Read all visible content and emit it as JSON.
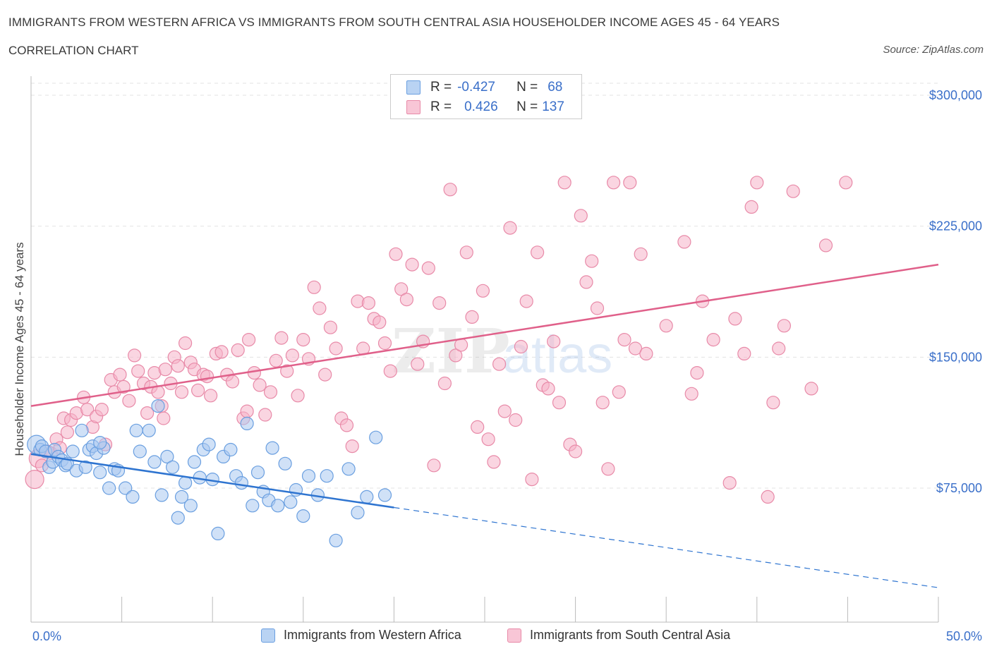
{
  "header": {
    "title": "IMMIGRANTS FROM WESTERN AFRICA VS IMMIGRANTS FROM SOUTH CENTRAL ASIA HOUSEHOLDER INCOME AGES 45 - 64 YEARS",
    "subtitle": "CORRELATION CHART",
    "source": "Source: ZipAtlas.com"
  },
  "legend": {
    "r_label": "R =",
    "n_label": "N =",
    "series1": {
      "r": "-0.427",
      "n": "68"
    },
    "series2": {
      "r": "0.426",
      "n": "137"
    }
  },
  "colors": {
    "blue_fill": "#a9c8f0",
    "blue_stroke": "#6a9fe0",
    "blue_line": "#2e74d0",
    "pink_fill": "#f5b3c8",
    "pink_stroke": "#e88aa8",
    "pink_line": "#e0608a",
    "axis_text": "#3a6fc9"
  },
  "chart_data": {
    "type": "scatter",
    "title": "IMMIGRANTS FROM WESTERN AFRICA VS IMMIGRANTS FROM SOUTH CENTRAL ASIA HOUSEHOLDER INCOME AGES 45 - 64 YEARS",
    "xlabel": "",
    "ylabel": "Householder Income Ages 45 - 64 years",
    "xlim": [
      0,
      50
    ],
    "ylim": [
      0,
      300000
    ],
    "x_tick_labels": [
      "0.0%",
      "50.0%"
    ],
    "y_ticks": [
      75000,
      150000,
      225000,
      300000
    ],
    "y_tick_labels": [
      "$75,000",
      "$150,000",
      "$225,000",
      "$300,000"
    ],
    "grid": true,
    "watermark": "ZIPatlas",
    "series": [
      {
        "name": "Immigrants from Western Africa",
        "color": "blue",
        "r": -0.427,
        "n": 68,
        "trend": {
          "x0": 0,
          "y0": 94500,
          "x_solid_end": 20,
          "x1": 50,
          "y1": 18000
        },
        "points": [
          [
            0.3,
            100000
          ],
          [
            0.5,
            97000
          ],
          [
            0.6,
            99000
          ],
          [
            0.8,
            96000
          ],
          [
            1.0,
            87000
          ],
          [
            1.2,
            90000
          ],
          [
            1.3,
            97000
          ],
          [
            1.5,
            93000
          ],
          [
            1.7,
            91000
          ],
          [
            1.9,
            88000
          ],
          [
            2.0,
            89000
          ],
          [
            2.3,
            96000
          ],
          [
            2.8,
            108000
          ],
          [
            2.5,
            85000
          ],
          [
            3.0,
            87000
          ],
          [
            3.2,
            97000
          ],
          [
            3.4,
            99000
          ],
          [
            3.6,
            95000
          ],
          [
            3.8,
            84000
          ],
          [
            4.0,
            98000
          ],
          [
            4.3,
            75000
          ],
          [
            4.6,
            86000
          ],
          [
            4.8,
            85000
          ],
          [
            5.2,
            75000
          ],
          [
            5.6,
            70000
          ],
          [
            5.8,
            108000
          ],
          [
            6.0,
            96000
          ],
          [
            6.5,
            108000
          ],
          [
            7.0,
            122000
          ],
          [
            7.2,
            71000
          ],
          [
            7.5,
            93000
          ],
          [
            7.8,
            87000
          ],
          [
            8.1,
            58000
          ],
          [
            8.3,
            70000
          ],
          [
            8.5,
            78000
          ],
          [
            8.8,
            65000
          ],
          [
            9.0,
            90000
          ],
          [
            9.3,
            81000
          ],
          [
            9.5,
            97000
          ],
          [
            9.8,
            100000
          ],
          [
            10.0,
            80000
          ],
          [
            10.3,
            49000
          ],
          [
            10.6,
            93000
          ],
          [
            11.0,
            97000
          ],
          [
            11.3,
            82000
          ],
          [
            11.6,
            78000
          ],
          [
            11.9,
            112000
          ],
          [
            12.2,
            65000
          ],
          [
            12.5,
            84000
          ],
          [
            12.8,
            73000
          ],
          [
            13.1,
            68000
          ],
          [
            13.3,
            98000
          ],
          [
            13.6,
            65000
          ],
          [
            14.0,
            89000
          ],
          [
            14.3,
            67000
          ],
          [
            14.6,
            74000
          ],
          [
            15.0,
            59000
          ],
          [
            15.3,
            82000
          ],
          [
            15.8,
            71000
          ],
          [
            16.3,
            82000
          ],
          [
            16.8,
            45000
          ],
          [
            17.5,
            86000
          ],
          [
            18.0,
            61000
          ],
          [
            18.5,
            70000
          ],
          [
            19.0,
            104000
          ],
          [
            19.5,
            71000
          ],
          [
            6.8,
            90000
          ],
          [
            3.8,
            101000
          ]
        ]
      },
      {
        "name": "Immigrants from South Central Asia",
        "color": "pink",
        "r": 0.426,
        "n": 137,
        "trend": {
          "x0": 0,
          "y0": 122000,
          "x1": 50,
          "y1": 203000
        },
        "points": [
          [
            0.2,
            80000
          ],
          [
            0.4,
            92000
          ],
          [
            0.6,
            88000
          ],
          [
            0.9,
            96000
          ],
          [
            1.1,
            95000
          ],
          [
            1.4,
            103000
          ],
          [
            1.6,
            98000
          ],
          [
            1.8,
            115000
          ],
          [
            2.0,
            107000
          ],
          [
            2.2,
            114000
          ],
          [
            2.5,
            118000
          ],
          [
            2.9,
            127000
          ],
          [
            3.1,
            120000
          ],
          [
            3.4,
            110000
          ],
          [
            3.6,
            116000
          ],
          [
            3.9,
            120000
          ],
          [
            4.1,
            100000
          ],
          [
            4.4,
            137000
          ],
          [
            4.6,
            130000
          ],
          [
            4.9,
            140000
          ],
          [
            5.1,
            133000
          ],
          [
            5.4,
            125000
          ],
          [
            5.7,
            151000
          ],
          [
            5.9,
            142000
          ],
          [
            6.2,
            135000
          ],
          [
            6.4,
            118000
          ],
          [
            6.6,
            133000
          ],
          [
            6.8,
            141000
          ],
          [
            7.0,
            130000
          ],
          [
            7.2,
            122000
          ],
          [
            7.4,
            143000
          ],
          [
            7.7,
            135000
          ],
          [
            7.9,
            150000
          ],
          [
            8.1,
            145000
          ],
          [
            8.3,
            130000
          ],
          [
            8.5,
            158000
          ],
          [
            8.8,
            147000
          ],
          [
            9.0,
            143000
          ],
          [
            9.2,
            131000
          ],
          [
            9.5,
            140000
          ],
          [
            9.7,
            139000
          ],
          [
            9.9,
            128000
          ],
          [
            10.2,
            152000
          ],
          [
            10.5,
            153000
          ],
          [
            10.8,
            140000
          ],
          [
            11.1,
            136000
          ],
          [
            11.4,
            154000
          ],
          [
            11.7,
            115000
          ],
          [
            12.0,
            160000
          ],
          [
            12.3,
            141000
          ],
          [
            12.6,
            134000
          ],
          [
            12.9,
            117000
          ],
          [
            13.2,
            130000
          ],
          [
            13.5,
            148000
          ],
          [
            13.8,
            161000
          ],
          [
            14.1,
            142000
          ],
          [
            14.4,
            151000
          ],
          [
            14.7,
            128000
          ],
          [
            15.0,
            160000
          ],
          [
            15.3,
            149000
          ],
          [
            15.6,
            190000
          ],
          [
            15.9,
            178000
          ],
          [
            16.2,
            140000
          ],
          [
            16.5,
            167000
          ],
          [
            16.8,
            155000
          ],
          [
            17.1,
            115000
          ],
          [
            17.4,
            111000
          ],
          [
            17.7,
            99000
          ],
          [
            18.0,
            182000
          ],
          [
            18.3,
            155000
          ],
          [
            18.6,
            181000
          ],
          [
            18.9,
            172000
          ],
          [
            19.2,
            170000
          ],
          [
            19.5,
            158000
          ],
          [
            19.8,
            142000
          ],
          [
            20.1,
            209000
          ],
          [
            20.4,
            189000
          ],
          [
            20.7,
            183000
          ],
          [
            21.0,
            203000
          ],
          [
            21.3,
            146000
          ],
          [
            21.6,
            159000
          ],
          [
            21.9,
            201000
          ],
          [
            22.2,
            88000
          ],
          [
            22.5,
            181000
          ],
          [
            22.8,
            135000
          ],
          [
            23.1,
            246000
          ],
          [
            23.4,
            151000
          ],
          [
            23.7,
            157000
          ],
          [
            24.0,
            210000
          ],
          [
            24.3,
            173000
          ],
          [
            24.6,
            110000
          ],
          [
            24.9,
            188000
          ],
          [
            25.2,
            103000
          ],
          [
            25.5,
            90000
          ],
          [
            25.8,
            146000
          ],
          [
            26.1,
            119000
          ],
          [
            26.4,
            224000
          ],
          [
            26.7,
            114000
          ],
          [
            27.0,
            156000
          ],
          [
            27.3,
            182000
          ],
          [
            27.6,
            80000
          ],
          [
            27.9,
            210000
          ],
          [
            28.2,
            134000
          ],
          [
            28.5,
            132000
          ],
          [
            28.8,
            159000
          ],
          [
            29.1,
            124000
          ],
          [
            29.4,
            250000
          ],
          [
            29.7,
            100000
          ],
          [
            30.0,
            96000
          ],
          [
            30.3,
            231000
          ],
          [
            30.6,
            193000
          ],
          [
            30.9,
            205000
          ],
          [
            31.2,
            178000
          ],
          [
            31.5,
            124000
          ],
          [
            31.8,
            86000
          ],
          [
            32.1,
            250000
          ],
          [
            32.4,
            130000
          ],
          [
            32.7,
            160000
          ],
          [
            33.0,
            250000
          ],
          [
            33.3,
            155000
          ],
          [
            33.6,
            209000
          ],
          [
            33.9,
            152000
          ],
          [
            35.0,
            168000
          ],
          [
            36.0,
            216000
          ],
          [
            36.4,
            129000
          ],
          [
            36.7,
            141000
          ],
          [
            37.0,
            182000
          ],
          [
            38.5,
            78000
          ],
          [
            38.8,
            172000
          ],
          [
            39.3,
            152000
          ],
          [
            39.7,
            236000
          ],
          [
            40.0,
            250000
          ],
          [
            40.6,
            70000
          ],
          [
            40.9,
            124000
          ],
          [
            41.2,
            155000
          ],
          [
            41.5,
            168000
          ],
          [
            42.0,
            245000
          ],
          [
            43.0,
            132000
          ],
          [
            43.8,
            214000
          ],
          [
            44.9,
            250000
          ],
          [
            11.9,
            119000
          ],
          [
            7.3,
            115000
          ],
          [
            37.6,
            160000
          ]
        ]
      }
    ]
  },
  "bottom_legend": {
    "item1": "Immigrants from Western Africa",
    "item2": "Immigrants from South Central Asia"
  }
}
